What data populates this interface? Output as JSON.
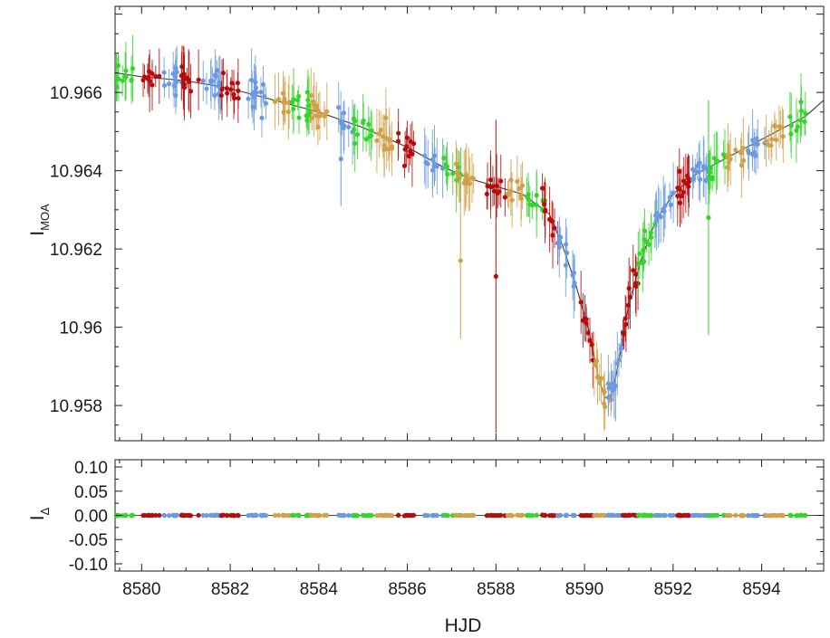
{
  "chart_data": [
    {
      "type": "scatter",
      "panel": "main",
      "ylabel": "I",
      "ylabel_subscript": "MOA",
      "xlim": [
        8579.4,
        8595.4
      ],
      "ylim": [
        10.9682,
        10.9571
      ],
      "y_inverted": true,
      "x_ticks": [
        8580,
        8582,
        8584,
        8586,
        8588,
        8590,
        8592,
        8594
      ],
      "y_ticks": [
        10.958,
        10.96,
        10.962,
        10.964,
        10.966
      ],
      "y_tick_labels": [
        "10.958",
        "10.96",
        "10.962",
        "10.964",
        "10.966"
      ],
      "series_colors": [
        "#6b9ae0",
        "#d1a04a",
        "#33d62a",
        "#b50d0d"
      ],
      "model_color": "#444444",
      "model_curve": {
        "x": [
          8579.4,
          8580,
          8581,
          8582,
          8583,
          8584,
          8585,
          8586,
          8586.8,
          8587.4,
          8588,
          8588.6,
          8589.2,
          8589.5,
          8589.8,
          8590.1,
          8590.3,
          8590.45,
          8590.55,
          8590.65,
          8590.8,
          8591,
          8591.3,
          8591.6,
          8592,
          8592.5,
          8593,
          8593.5,
          8594,
          8594.5,
          8595,
          8595.4
        ],
        "y": [
          10.9665,
          10.9664,
          10.9663,
          10.9661,
          10.9658,
          10.9655,
          10.9651,
          10.9646,
          10.9641,
          10.9638,
          10.9636,
          10.9634,
          10.9629,
          10.9621,
          10.9611,
          10.9599,
          10.9588,
          10.9582,
          10.9582,
          10.9584,
          10.9593,
          10.9606,
          10.9618,
          10.9627,
          10.9634,
          10.9639,
          10.9642,
          10.9645,
          10.9648,
          10.9651,
          10.9654,
          10.9658
        ]
      },
      "grid": false,
      "legend": "none"
    },
    {
      "type": "scatter",
      "panel": "residual",
      "xlabel": "HJD",
      "ylabel": "I",
      "ylabel_subscript": "Δ",
      "xlim": [
        8579.4,
        8595.4
      ],
      "ylim": [
        -0.115,
        0.115
      ],
      "x_ticks": [
        8580,
        8582,
        8584,
        8586,
        8588,
        8590,
        8592,
        8594
      ],
      "y_ticks": [
        0.1,
        0.05,
        0.0,
        -0.05,
        -0.1
      ],
      "y_tick_labels": [
        "0.10",
        "0.05",
        "0.00",
        "-0.05",
        "-0.10"
      ],
      "baseline": 0.0,
      "grid": false,
      "legend": "none"
    }
  ]
}
